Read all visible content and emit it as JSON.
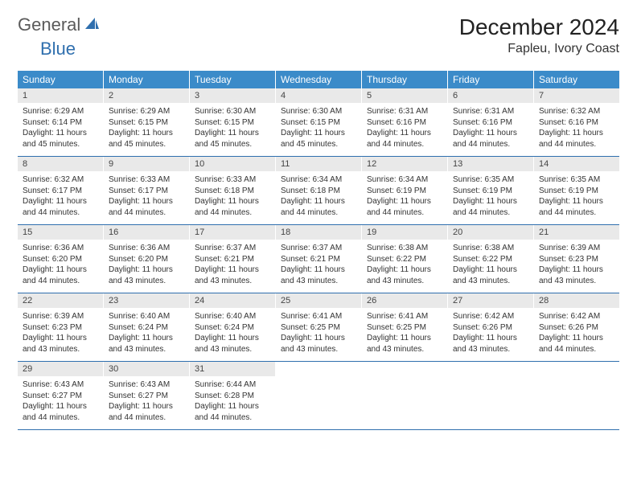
{
  "logo": {
    "text_general": "General",
    "text_blue": "Blue",
    "icon_color": "#2f6fae"
  },
  "title": "December 2024",
  "location": "Fapleu, Ivory Coast",
  "weekday_header_bg": "#3b8bc9",
  "weekday_header_fg": "#ffffff",
  "daynum_bg": "#e9e9e9",
  "border_color": "#2f6fae",
  "weekdays": [
    "Sunday",
    "Monday",
    "Tuesday",
    "Wednesday",
    "Thursday",
    "Friday",
    "Saturday"
  ],
  "weeks": [
    [
      {
        "n": "1",
        "sr": "Sunrise: 6:29 AM",
        "ss": "Sunset: 6:14 PM",
        "d1": "Daylight: 11 hours",
        "d2": "and 45 minutes."
      },
      {
        "n": "2",
        "sr": "Sunrise: 6:29 AM",
        "ss": "Sunset: 6:15 PM",
        "d1": "Daylight: 11 hours",
        "d2": "and 45 minutes."
      },
      {
        "n": "3",
        "sr": "Sunrise: 6:30 AM",
        "ss": "Sunset: 6:15 PM",
        "d1": "Daylight: 11 hours",
        "d2": "and 45 minutes."
      },
      {
        "n": "4",
        "sr": "Sunrise: 6:30 AM",
        "ss": "Sunset: 6:15 PM",
        "d1": "Daylight: 11 hours",
        "d2": "and 45 minutes."
      },
      {
        "n": "5",
        "sr": "Sunrise: 6:31 AM",
        "ss": "Sunset: 6:16 PM",
        "d1": "Daylight: 11 hours",
        "d2": "and 44 minutes."
      },
      {
        "n": "6",
        "sr": "Sunrise: 6:31 AM",
        "ss": "Sunset: 6:16 PM",
        "d1": "Daylight: 11 hours",
        "d2": "and 44 minutes."
      },
      {
        "n": "7",
        "sr": "Sunrise: 6:32 AM",
        "ss": "Sunset: 6:16 PM",
        "d1": "Daylight: 11 hours",
        "d2": "and 44 minutes."
      }
    ],
    [
      {
        "n": "8",
        "sr": "Sunrise: 6:32 AM",
        "ss": "Sunset: 6:17 PM",
        "d1": "Daylight: 11 hours",
        "d2": "and 44 minutes."
      },
      {
        "n": "9",
        "sr": "Sunrise: 6:33 AM",
        "ss": "Sunset: 6:17 PM",
        "d1": "Daylight: 11 hours",
        "d2": "and 44 minutes."
      },
      {
        "n": "10",
        "sr": "Sunrise: 6:33 AM",
        "ss": "Sunset: 6:18 PM",
        "d1": "Daylight: 11 hours",
        "d2": "and 44 minutes."
      },
      {
        "n": "11",
        "sr": "Sunrise: 6:34 AM",
        "ss": "Sunset: 6:18 PM",
        "d1": "Daylight: 11 hours",
        "d2": "and 44 minutes."
      },
      {
        "n": "12",
        "sr": "Sunrise: 6:34 AM",
        "ss": "Sunset: 6:19 PM",
        "d1": "Daylight: 11 hours",
        "d2": "and 44 minutes."
      },
      {
        "n": "13",
        "sr": "Sunrise: 6:35 AM",
        "ss": "Sunset: 6:19 PM",
        "d1": "Daylight: 11 hours",
        "d2": "and 44 minutes."
      },
      {
        "n": "14",
        "sr": "Sunrise: 6:35 AM",
        "ss": "Sunset: 6:19 PM",
        "d1": "Daylight: 11 hours",
        "d2": "and 44 minutes."
      }
    ],
    [
      {
        "n": "15",
        "sr": "Sunrise: 6:36 AM",
        "ss": "Sunset: 6:20 PM",
        "d1": "Daylight: 11 hours",
        "d2": "and 44 minutes."
      },
      {
        "n": "16",
        "sr": "Sunrise: 6:36 AM",
        "ss": "Sunset: 6:20 PM",
        "d1": "Daylight: 11 hours",
        "d2": "and 43 minutes."
      },
      {
        "n": "17",
        "sr": "Sunrise: 6:37 AM",
        "ss": "Sunset: 6:21 PM",
        "d1": "Daylight: 11 hours",
        "d2": "and 43 minutes."
      },
      {
        "n": "18",
        "sr": "Sunrise: 6:37 AM",
        "ss": "Sunset: 6:21 PM",
        "d1": "Daylight: 11 hours",
        "d2": "and 43 minutes."
      },
      {
        "n": "19",
        "sr": "Sunrise: 6:38 AM",
        "ss": "Sunset: 6:22 PM",
        "d1": "Daylight: 11 hours",
        "d2": "and 43 minutes."
      },
      {
        "n": "20",
        "sr": "Sunrise: 6:38 AM",
        "ss": "Sunset: 6:22 PM",
        "d1": "Daylight: 11 hours",
        "d2": "and 43 minutes."
      },
      {
        "n": "21",
        "sr": "Sunrise: 6:39 AM",
        "ss": "Sunset: 6:23 PM",
        "d1": "Daylight: 11 hours",
        "d2": "and 43 minutes."
      }
    ],
    [
      {
        "n": "22",
        "sr": "Sunrise: 6:39 AM",
        "ss": "Sunset: 6:23 PM",
        "d1": "Daylight: 11 hours",
        "d2": "and 43 minutes."
      },
      {
        "n": "23",
        "sr": "Sunrise: 6:40 AM",
        "ss": "Sunset: 6:24 PM",
        "d1": "Daylight: 11 hours",
        "d2": "and 43 minutes."
      },
      {
        "n": "24",
        "sr": "Sunrise: 6:40 AM",
        "ss": "Sunset: 6:24 PM",
        "d1": "Daylight: 11 hours",
        "d2": "and 43 minutes."
      },
      {
        "n": "25",
        "sr": "Sunrise: 6:41 AM",
        "ss": "Sunset: 6:25 PM",
        "d1": "Daylight: 11 hours",
        "d2": "and 43 minutes."
      },
      {
        "n": "26",
        "sr": "Sunrise: 6:41 AM",
        "ss": "Sunset: 6:25 PM",
        "d1": "Daylight: 11 hours",
        "d2": "and 43 minutes."
      },
      {
        "n": "27",
        "sr": "Sunrise: 6:42 AM",
        "ss": "Sunset: 6:26 PM",
        "d1": "Daylight: 11 hours",
        "d2": "and 43 minutes."
      },
      {
        "n": "28",
        "sr": "Sunrise: 6:42 AM",
        "ss": "Sunset: 6:26 PM",
        "d1": "Daylight: 11 hours",
        "d2": "and 44 minutes."
      }
    ],
    [
      {
        "n": "29",
        "sr": "Sunrise: 6:43 AM",
        "ss": "Sunset: 6:27 PM",
        "d1": "Daylight: 11 hours",
        "d2": "and 44 minutes."
      },
      {
        "n": "30",
        "sr": "Sunrise: 6:43 AM",
        "ss": "Sunset: 6:27 PM",
        "d1": "Daylight: 11 hours",
        "d2": "and 44 minutes."
      },
      {
        "n": "31",
        "sr": "Sunrise: 6:44 AM",
        "ss": "Sunset: 6:28 PM",
        "d1": "Daylight: 11 hours",
        "d2": "and 44 minutes."
      },
      null,
      null,
      null,
      null
    ]
  ]
}
